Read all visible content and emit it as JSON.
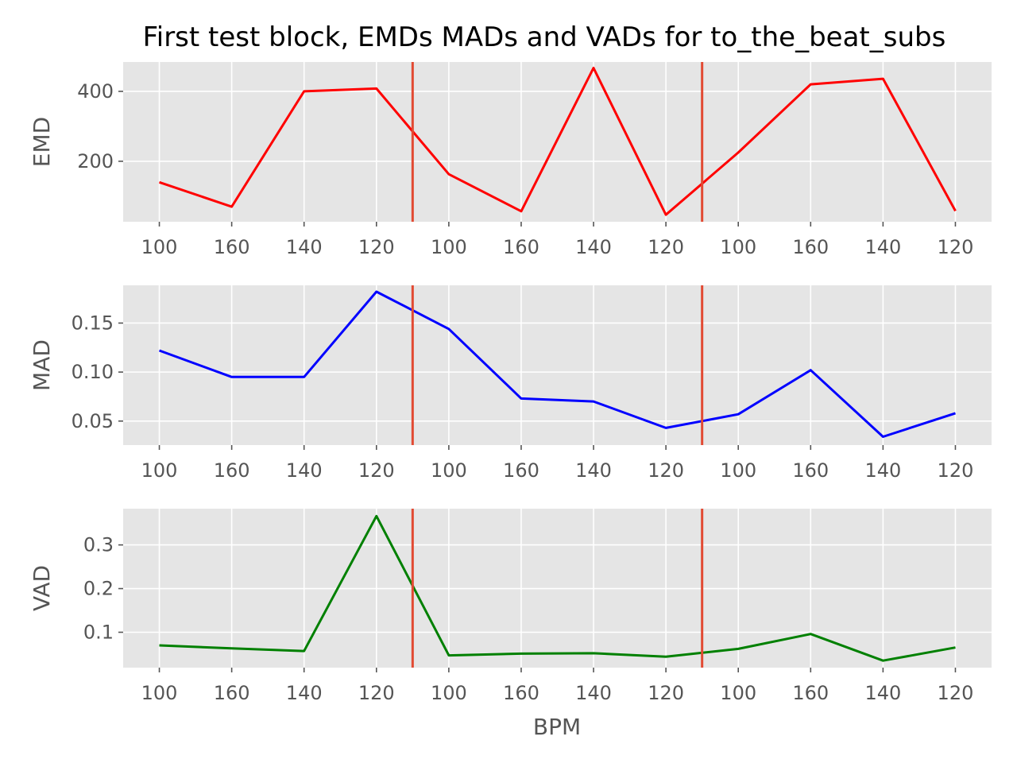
{
  "chart_data": {
    "type": "line",
    "title": "First test block, EMDs MADs and VADs for to_the_beat_subs",
    "xlabel": "BPM",
    "categories": [
      "100",
      "160",
      "140",
      "120",
      "100",
      "160",
      "140",
      "120",
      "100",
      "160",
      "140",
      "120"
    ],
    "vlines_x": [
      3.5,
      7.5
    ],
    "vline_color": "#E24A33",
    "background": "#E5E5E5",
    "grid": true,
    "panels": [
      {
        "ylabel": "EMD",
        "color": "#ff0000",
        "ylim": [
          27,
          484
        ],
        "yticks": [
          200,
          400
        ],
        "yticklabels": [
          "200",
          "400"
        ],
        "values": [
          140,
          70,
          400,
          408,
          163,
          57,
          467,
          47,
          225,
          420,
          436,
          58
        ]
      },
      {
        "ylabel": "MAD",
        "color": "#0000ff",
        "ylim": [
          0.0255,
          0.1885
        ],
        "yticks": [
          0.05,
          0.1,
          0.15
        ],
        "yticklabels": [
          "0.05",
          "0.10",
          "0.15"
        ],
        "values": [
          0.122,
          0.095,
          0.095,
          0.182,
          0.144,
          0.073,
          0.07,
          0.043,
          0.057,
          0.102,
          0.034,
          0.058
        ]
      },
      {
        "ylabel": "VAD",
        "color": "#008000",
        "ylim": [
          0.019,
          0.383
        ],
        "yticks": [
          0.1,
          0.2,
          0.3
        ],
        "yticklabels": [
          "0.1",
          "0.2",
          "0.3"
        ],
        "values": [
          0.07,
          0.063,
          0.057,
          0.366,
          0.047,
          0.051,
          0.052,
          0.044,
          0.062,
          0.096,
          0.035,
          0.065
        ]
      }
    ]
  }
}
